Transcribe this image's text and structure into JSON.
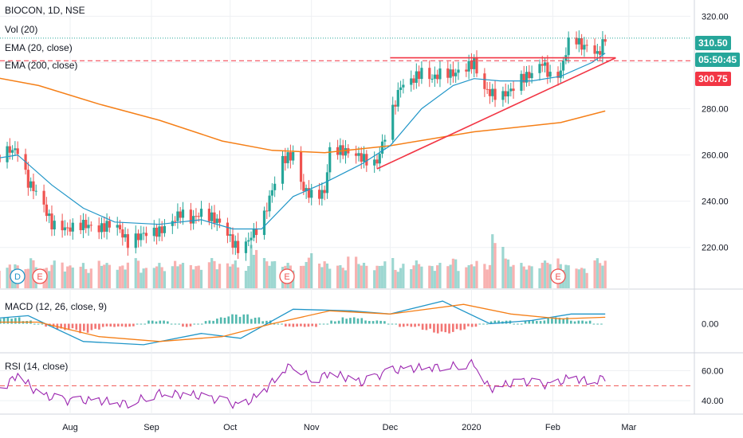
{
  "header": {
    "symbol_line": "BIOCON, 1D, NSE",
    "vol_label": "Vol (20)",
    "ema_short_label": "EMA (20, close)",
    "ema_long_label": "EMA (200, close)"
  },
  "macd_label": "MACD (12, 26, close, 9)",
  "rsi_label": "RSI (14, close)",
  "price_tags": {
    "last_price": "310.50",
    "countdown": "05:50:45",
    "line_level": "300.75"
  },
  "colors": {
    "up": "#26a69a",
    "down": "#ef5350",
    "ema20": "#2196c8",
    "ema200": "#f57f17",
    "trendline": "#f23645",
    "macd": "#2196c8",
    "signal": "#f57f17",
    "rsi": "#9c27b0",
    "last_price_line": "#26a69a",
    "grid": "#eef0f3"
  },
  "event_markers": [
    {
      "label": "D",
      "kind": "dividend"
    },
    {
      "label": "E",
      "kind": "earnings"
    },
    {
      "label": "E",
      "kind": "earnings"
    },
    {
      "label": "E",
      "kind": "earnings"
    }
  ],
  "chart_data": [
    {
      "type": "candlestick",
      "title": "BIOCON, 1D, NSE",
      "ylim": [
        202,
        327
      ],
      "y_ticks": [
        "320.00",
        "300.00",
        "280.00",
        "260.00",
        "240.00",
        "220.00"
      ],
      "x_ticks": [
        "Aug",
        "Sep",
        "Oct",
        "Nov",
        "Dec",
        "2020",
        "Feb",
        "Mar"
      ],
      "close_path": [
        [
          "2019-07-01",
          255
        ],
        [
          "2019-07-08",
          262
        ],
        [
          "2019-07-12",
          262
        ],
        [
          "2019-07-16",
          248
        ],
        [
          "2019-07-20",
          243
        ],
        [
          "2019-07-25",
          230
        ],
        [
          "2019-07-31",
          228
        ],
        [
          "2019-08-06",
          230
        ],
        [
          "2019-08-12",
          228
        ],
        [
          "2019-08-18",
          231
        ],
        [
          "2019-08-23",
          222
        ],
        [
          "2019-08-29",
          226
        ],
        [
          "2019-09-04",
          227
        ],
        [
          "2019-09-08",
          230
        ],
        [
          "2019-09-12",
          235
        ],
        [
          "2019-09-16",
          232
        ],
        [
          "2019-09-20",
          235
        ],
        [
          "2019-09-24",
          233
        ],
        [
          "2019-09-28",
          230
        ],
        [
          "2019-10-02",
          222
        ],
        [
          "2019-10-05",
          218
        ],
        [
          "2019-10-09",
          225
        ],
        [
          "2019-10-13",
          230
        ],
        [
          "2019-10-17",
          245
        ],
        [
          "2019-10-21",
          258
        ],
        [
          "2019-10-25",
          260
        ],
        [
          "2019-10-29",
          245
        ],
        [
          "2019-11-02",
          242
        ],
        [
          "2019-11-06",
          244
        ],
        [
          "2019-11-08",
          262
        ],
        [
          "2019-11-12",
          262
        ],
        [
          "2019-11-16",
          261
        ],
        [
          "2019-11-20",
          259
        ],
        [
          "2019-11-24",
          256
        ],
        [
          "2019-11-26",
          257
        ],
        [
          "2019-12-01",
          276
        ],
        [
          "2019-12-05",
          290
        ],
        [
          "2019-12-09",
          292
        ],
        [
          "2019-12-13",
          296
        ],
        [
          "2019-12-17",
          293
        ],
        [
          "2019-12-21",
          296
        ],
        [
          "2019-12-25",
          295
        ],
        [
          "2019-12-29",
          297
        ],
        [
          "2020-01-02",
          300
        ],
        [
          "2020-01-05",
          289
        ],
        [
          "2020-01-08",
          287
        ],
        [
          "2020-01-12",
          285
        ],
        [
          "2020-01-16",
          288
        ],
        [
          "2020-01-20",
          293
        ],
        [
          "2020-01-24",
          295
        ],
        [
          "2020-01-28",
          300
        ],
        [
          "2020-02-01",
          292
        ],
        [
          "2020-02-04",
          296
        ],
        [
          "2020-02-08",
          313
        ],
        [
          "2020-02-12",
          307
        ],
        [
          "2020-02-16",
          307
        ],
        [
          "2020-02-18",
          303
        ],
        [
          "2020-02-21",
          310.5
        ]
      ],
      "ema20_path": [
        [
          "2019-07-01",
          258
        ],
        [
          "2019-07-12",
          260
        ],
        [
          "2019-07-25",
          247
        ],
        [
          "2019-08-06",
          237
        ],
        [
          "2019-08-18",
          231
        ],
        [
          "2019-09-04",
          230
        ],
        [
          "2019-09-20",
          232
        ],
        [
          "2019-10-02",
          228
        ],
        [
          "2019-10-13",
          228
        ],
        [
          "2019-10-25",
          242
        ],
        [
          "2019-11-06",
          248
        ],
        [
          "2019-11-20",
          256
        ],
        [
          "2019-12-01",
          264
        ],
        [
          "2019-12-13",
          280
        ],
        [
          "2019-12-25",
          290
        ],
        [
          "2020-01-02",
          293
        ],
        [
          "2020-01-12",
          292
        ],
        [
          "2020-01-24",
          292
        ],
        [
          "2020-02-04",
          294
        ],
        [
          "2020-02-16",
          300
        ],
        [
          "2020-02-21",
          304
        ]
      ],
      "ema200_path": [
        [
          "2019-07-01",
          294
        ],
        [
          "2019-07-20",
          290
        ],
        [
          "2019-08-12",
          282
        ],
        [
          "2019-09-04",
          275
        ],
        [
          "2019-09-28",
          266
        ],
        [
          "2019-10-17",
          262
        ],
        [
          "2019-11-06",
          261
        ],
        [
          "2019-12-01",
          264
        ],
        [
          "2020-01-02",
          270
        ],
        [
          "2020-02-04",
          274
        ],
        [
          "2020-02-21",
          279
        ]
      ],
      "trendlines": [
        {
          "from": [
            "2019-12-01",
            302
          ],
          "to": [
            "2020-02-25",
            302
          ]
        },
        {
          "from": [
            "2019-11-26",
            254
          ],
          "to": [
            "2020-02-25",
            302
          ]
        }
      ],
      "horizontal_levels": [
        300.75,
        310.5
      ],
      "volume_relative": [
        0.55,
        0.3,
        0.4,
        0.35,
        0.5,
        0.3,
        0.45,
        0.35,
        0.4,
        0.3,
        0.45,
        0.4,
        0.35,
        0.5,
        0.3,
        0.4,
        0.35,
        0.45,
        0.4,
        0.35,
        0.5,
        0.4,
        0.45,
        0.35,
        0.8,
        0.5,
        0.45,
        0.4,
        0.35,
        0.6,
        0.45,
        0.4,
        0.35,
        0.55,
        0.4,
        0.35,
        0.5,
        0.3,
        0.4,
        0.45,
        0.35,
        0.4,
        0.5,
        0.35,
        0.45,
        0.4,
        1.0,
        0.5,
        0.4,
        0.35,
        0.45,
        0.5,
        0.4,
        0.35,
        0.3,
        0.5,
        0.45,
        0.6,
        0.4,
        0.55,
        0.35,
        0.4
      ]
    },
    {
      "type": "line",
      "title": "MACD (12, 26, close, 9)",
      "ylim": [
        -9,
        9
      ],
      "y_ticks": [
        "0.00"
      ],
      "series": [
        {
          "name": "MACD",
          "x": [
            "2019-07-01",
            "2019-07-16",
            "2019-08-06",
            "2019-08-29",
            "2019-09-20",
            "2019-10-05",
            "2019-10-25",
            "2019-11-16",
            "2019-12-01",
            "2019-12-21",
            "2020-01-08",
            "2020-01-24",
            "2020-02-08",
            "2020-02-21"
          ],
          "values": [
            1.5,
            2.5,
            -5.5,
            -6.5,
            -3,
            -4.5,
            4.5,
            4,
            3,
            7,
            0,
            1,
            3,
            3
          ]
        },
        {
          "name": "Signal",
          "x": [
            "2019-07-01",
            "2019-07-20",
            "2019-08-12",
            "2019-09-04",
            "2019-09-28",
            "2019-10-17",
            "2019-11-08",
            "2019-12-01",
            "2019-12-29",
            "2020-01-16",
            "2020-02-04",
            "2020-02-21"
          ],
          "values": [
            0.5,
            0.5,
            -4,
            -5.5,
            -4,
            0,
            4,
            3,
            6,
            3,
            1.5,
            2
          ]
        }
      ],
      "histogram": [
        1,
        2,
        2,
        1,
        0,
        -1,
        -2,
        -2,
        -3,
        -2,
        -1,
        -1,
        -1,
        0,
        1,
        1,
        0,
        -1,
        0,
        1,
        2,
        3,
        3,
        2,
        1,
        0,
        -1,
        -1,
        -1,
        0,
        1,
        2,
        2,
        1,
        1,
        0,
        -1,
        -1,
        -2,
        -3,
        -3,
        -2,
        -1,
        0,
        1,
        1,
        0,
        1,
        1,
        2,
        2,
        1,
        1,
        0
      ]
    },
    {
      "type": "line",
      "title": "RSI (14, close)",
      "ylim": [
        31,
        72
      ],
      "y_ticks": [
        "60.00",
        "40.00"
      ],
      "reference_level": 50,
      "series": [
        {
          "name": "RSI",
          "x": [
            "2019-07-01",
            "2019-07-08",
            "2019-07-12",
            "2019-07-20",
            "2019-07-31",
            "2019-08-12",
            "2019-08-23",
            "2019-09-04",
            "2019-09-16",
            "2019-09-28",
            "2019-10-05",
            "2019-10-13",
            "2019-10-21",
            "2019-10-25",
            "2019-11-02",
            "2019-11-08",
            "2019-11-20",
            "2019-12-01",
            "2019-12-13",
            "2019-12-25",
            "2020-01-02",
            "2020-01-08",
            "2020-01-20",
            "2020-02-01",
            "2020-02-08",
            "2020-02-16",
            "2020-02-21"
          ],
          "values": [
            50,
            51,
            58,
            44,
            40,
            40,
            38,
            45,
            44,
            40,
            36,
            45,
            60,
            64,
            53,
            59,
            52,
            60,
            62,
            63,
            65,
            48,
            53,
            50,
            56,
            52,
            56
          ]
        }
      ]
    }
  ]
}
